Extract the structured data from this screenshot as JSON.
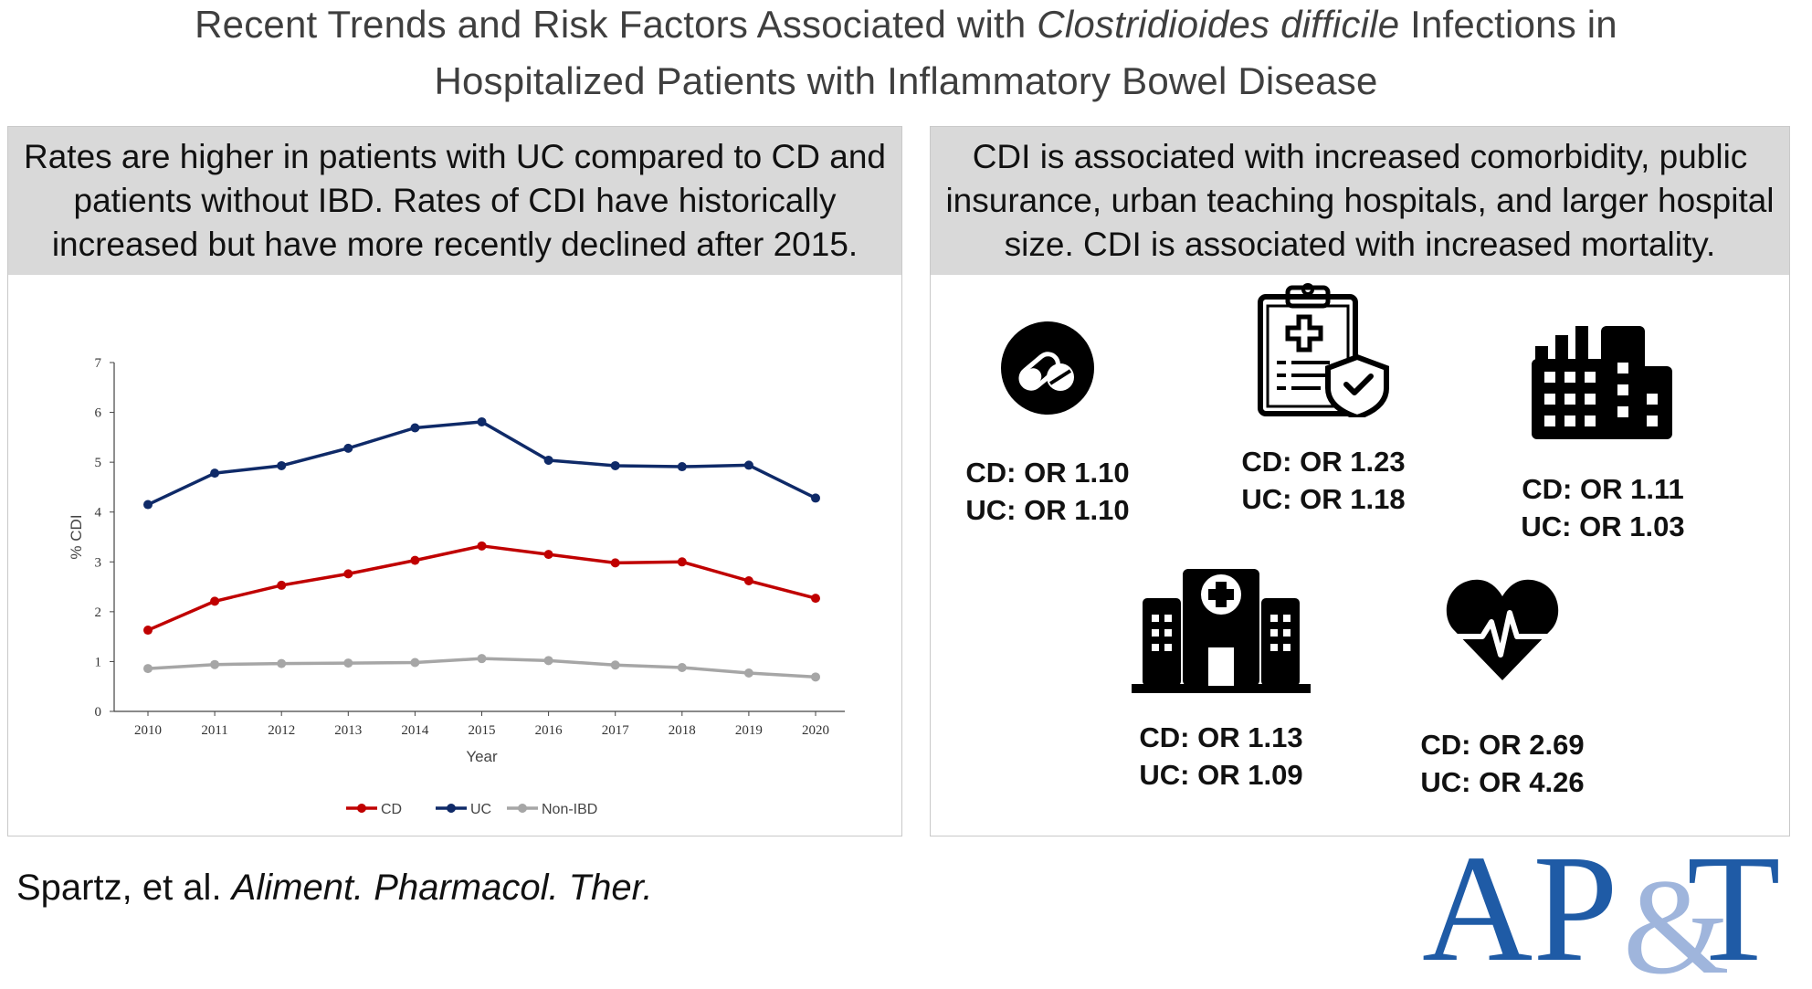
{
  "title": {
    "line1_pre": "Recent Trends and Risk Factors Associated with ",
    "line1_italic": "Clostridioides difficile",
    "line1_post": " Infections in",
    "line2": "Hospitalized Patients with Inflammatory Bowel Disease"
  },
  "left_panel": {
    "header": "Rates are higher in patients with UC compared to CD and patients without IBD. Rates of CDI have historically increased but have more recently declined after 2015."
  },
  "right_panel": {
    "header": "CDI is associated with increased comorbidity, public insurance, urban teaching hospitals, and larger hospital size. CDI is associated with increased mortality.",
    "items": [
      {
        "icon": "pills-icon",
        "cd": "CD: OR 1.10",
        "uc": "UC: OR 1.10"
      },
      {
        "icon": "insurance-clipboard-icon",
        "cd": "CD: OR 1.23",
        "uc": "UC: OR 1.18"
      },
      {
        "icon": "urban-buildings-icon",
        "cd": "CD: OR 1.11",
        "uc": "UC: OR 1.03"
      },
      {
        "icon": "hospital-icon",
        "cd": "CD: OR 1.13",
        "uc": "UC: OR 1.09"
      },
      {
        "icon": "heart-pulse-icon",
        "cd": "CD: OR 2.69",
        "uc": "UC: OR 4.26"
      }
    ]
  },
  "citation": {
    "authors": "Spartz, et al. ",
    "journal": "Aliment. Pharmacol. Ther."
  },
  "logo": {
    "part1": "AP",
    "amp": "&",
    "part2": "T",
    "color_main": "#1f5ba6",
    "color_amp": "#9fb5dc"
  },
  "chart_data": {
    "type": "line",
    "x": [
      "2010",
      "2011",
      "2012",
      "2013",
      "2014",
      "2015",
      "2016",
      "2017",
      "2018",
      "2019",
      "2020"
    ],
    "xlabel": "Year",
    "ylabel": "% CDI",
    "ylim": [
      0,
      7
    ],
    "yticks": [
      0,
      1,
      2,
      3,
      4,
      5,
      6,
      7
    ],
    "legend_position": "bottom-center",
    "grid": false,
    "series": [
      {
        "name": "CD",
        "color": "#c00000",
        "values": [
          1.63,
          2.21,
          2.53,
          2.76,
          3.03,
          3.32,
          3.15,
          2.98,
          3.0,
          2.62,
          2.27
        ]
      },
      {
        "name": "UC",
        "color": "#0f2a68",
        "values": [
          4.15,
          4.78,
          4.93,
          5.28,
          5.69,
          5.81,
          5.04,
          4.93,
          4.91,
          4.94,
          4.28
        ]
      },
      {
        "name": "Non-IBD",
        "color": "#a6a6a6",
        "values": [
          0.86,
          0.94,
          0.96,
          0.97,
          0.98,
          1.06,
          1.02,
          0.93,
          0.88,
          0.77,
          0.69
        ]
      }
    ]
  }
}
